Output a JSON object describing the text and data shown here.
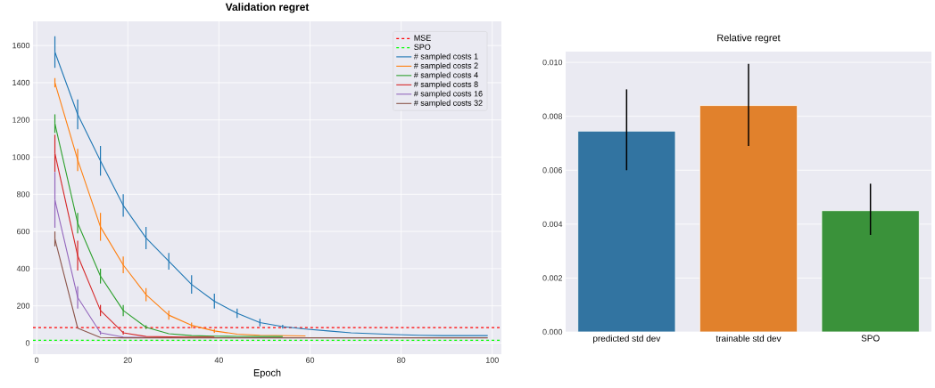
{
  "chart_data": [
    {
      "type": "line",
      "title": "Validation regret",
      "xlabel": "Epoch",
      "x": [
        4,
        9,
        14,
        19,
        24,
        29,
        34,
        39,
        44,
        49,
        54,
        59,
        64,
        69,
        74,
        79,
        84,
        89,
        94,
        99
      ],
      "series": [
        {
          "name": "# sampled costs 1",
          "color": "#1f77b4",
          "values": [
            1565,
            1230,
            980,
            740,
            565,
            440,
            315,
            225,
            160,
            110,
            88,
            75,
            65,
            55,
            50,
            45,
            42,
            40,
            40,
            40
          ],
          "errors": [
            85,
            80,
            80,
            60,
            60,
            45,
            50,
            40,
            25,
            20,
            10,
            null,
            null,
            null,
            null,
            null,
            null,
            null,
            null,
            null
          ]
        },
        {
          "name": "# sampled costs 2",
          "color": "#ff7f0e",
          "values": [
            1400,
            985,
            625,
            420,
            260,
            150,
            95,
            65,
            48,
            42,
            40,
            38,
            null,
            null,
            null,
            null,
            null,
            null,
            null,
            null
          ],
          "errors": [
            25,
            60,
            75,
            45,
            35,
            25,
            15,
            10,
            null,
            null,
            null,
            null,
            null,
            null,
            null,
            null,
            null,
            null,
            null,
            null
          ]
        },
        {
          "name": "# sampled costs 4",
          "color": "#2ca02c",
          "values": [
            1180,
            645,
            360,
            175,
            85,
            50,
            40,
            37,
            36,
            35,
            35,
            null,
            null,
            null,
            null,
            null,
            null,
            null,
            null,
            null
          ],
          "errors": [
            50,
            55,
            40,
            30,
            10,
            null,
            null,
            null,
            null,
            null,
            null,
            null,
            null,
            null,
            null,
            null,
            null,
            null,
            null,
            null
          ]
        },
        {
          "name": "# sampled costs 8",
          "color": "#d62728",
          "values": [
            1020,
            470,
            175,
            55,
            35,
            33,
            32,
            32,
            null,
            null,
            null,
            null,
            null,
            null,
            null,
            null,
            null,
            null,
            null,
            null
          ],
          "errors": [
            100,
            80,
            30,
            10,
            null,
            null,
            null,
            null,
            null,
            null,
            null,
            null,
            null,
            null,
            null,
            null,
            null,
            null,
            null,
            null
          ]
        },
        {
          "name": "# sampled costs 16",
          "color": "#9467bd",
          "values": [
            770,
            245,
            55,
            32,
            30,
            null,
            null,
            null,
            null,
            null,
            null,
            null,
            null,
            null,
            null,
            null,
            null,
            null,
            null,
            null
          ],
          "errors": [
            150,
            60,
            10,
            null,
            null,
            null,
            null,
            null,
            null,
            null,
            null,
            null,
            null,
            null,
            null,
            null,
            null,
            null,
            null,
            null
          ]
        },
        {
          "name": "# sampled costs 32",
          "color": "#8c564b",
          "values": [
            560,
            80,
            30,
            28,
            28,
            28,
            28,
            28,
            28,
            28,
            28,
            28,
            28,
            28,
            28,
            28,
            28,
            28,
            28,
            28
          ],
          "errors": [
            40,
            null,
            null,
            null,
            null,
            null,
            null,
            null,
            null,
            null,
            null,
            null,
            null,
            null,
            null,
            null,
            null,
            null,
            null,
            null
          ]
        }
      ],
      "ref_lines": [
        {
          "axis": "y",
          "value": 83,
          "label": "MSE",
          "color": "#ff0000",
          "line_style": "dashed"
        },
        {
          "axis": "y",
          "value": 15,
          "label": "SPO",
          "color": "#00ff00",
          "line_style": "dashed"
        }
      ],
      "xlim": [
        -0.8,
        102
      ],
      "ylim": [
        -60,
        1730
      ],
      "xticks": [
        0,
        20,
        40,
        60,
        80,
        100
      ],
      "yticks": [
        0,
        200,
        400,
        600,
        800,
        1000,
        1200,
        1400,
        1600
      ],
      "grid": true,
      "legend": "top right"
    },
    {
      "type": "bar",
      "title": "Relative regret",
      "categories": [
        "predicted std dev",
        "trainable std dev",
        "SPO"
      ],
      "values": [
        0.00745,
        0.0084,
        0.0045
      ],
      "colors": [
        "#3274a1",
        "#e1812c",
        "#3a923a"
      ],
      "errors": [
        [
          0.006,
          0.009
        ],
        [
          0.0069,
          0.00995
        ],
        [
          0.0036,
          0.0055
        ]
      ],
      "ylim": [
        0,
        0.0104
      ],
      "yticks": [
        {
          "value": 0,
          "label": "0.000"
        },
        {
          "value": 0.002,
          "label": "0.002"
        },
        {
          "value": 0.004,
          "label": "0.004"
        },
        {
          "value": 0.006,
          "label": "0.006"
        },
        {
          "value": 0.008,
          "label": "0.008"
        },
        {
          "value": 0.01,
          "label": "0.010"
        }
      ],
      "grid": "y"
    }
  ]
}
